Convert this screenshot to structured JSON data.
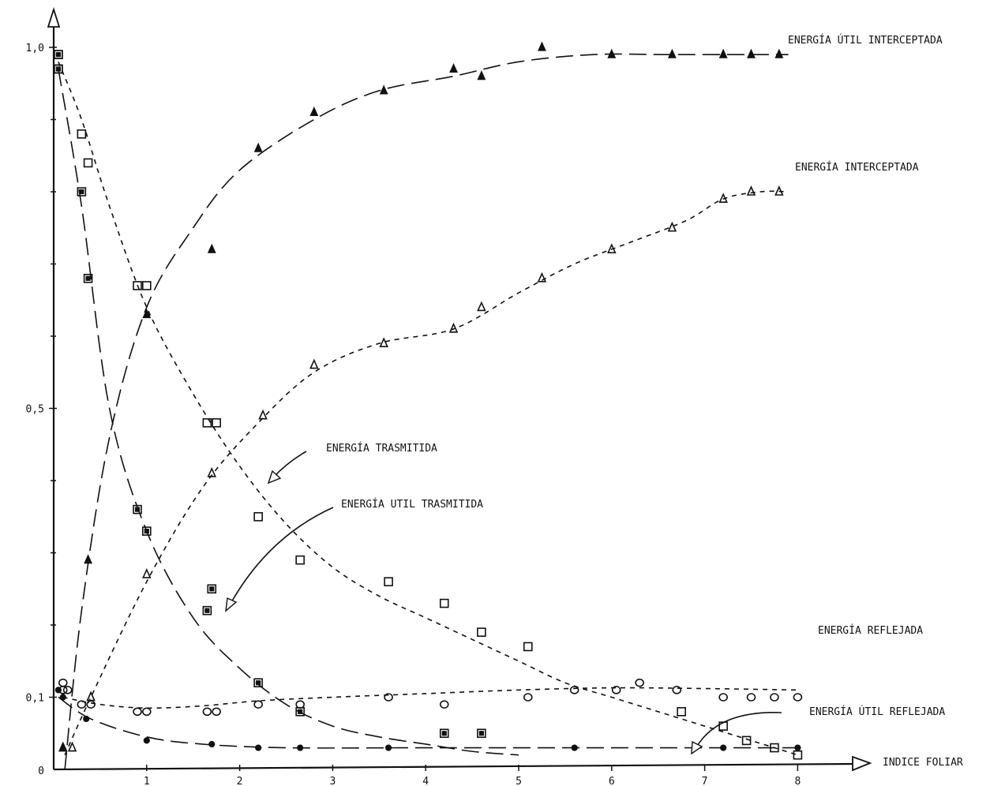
{
  "chart_data": {
    "type": "scatter",
    "xlabel": "INDICE FOLIAR",
    "ylabel": "",
    "xlim": [
      0,
      8
    ],
    "ylim": [
      0,
      1
    ],
    "grid": false,
    "x_ticks": [
      "1",
      "2",
      "3",
      "4",
      "5",
      "6",
      "7",
      "8"
    ],
    "y_ticks": [
      {
        "value": 0,
        "label": "0"
      },
      {
        "value": 0.1,
        "label": "0,1"
      },
      {
        "value": 0.5,
        "label": "0,5"
      },
      {
        "value": 1.0,
        "label": "1,0"
      }
    ],
    "series": [
      {
        "name": "ENERGÍA ÚTIL INTERCEPTADA",
        "marker": "triangle-filled",
        "dash": "long",
        "points": [
          [
            0.1,
            0.03
          ],
          [
            0.37,
            0.29
          ],
          [
            1.0,
            0.63
          ],
          [
            1.7,
            0.72
          ],
          [
            2.2,
            0.86
          ],
          [
            2.8,
            0.91
          ],
          [
            3.55,
            0.94
          ],
          [
            4.3,
            0.97
          ],
          [
            4.6,
            0.96
          ],
          [
            5.25,
            1.0
          ],
          [
            6.0,
            0.99
          ],
          [
            6.65,
            0.99
          ],
          [
            7.2,
            0.99
          ],
          [
            7.5,
            0.99
          ],
          [
            7.8,
            0.99
          ]
        ],
        "curve": [
          [
            0.12,
            0.0
          ],
          [
            0.3,
            0.22
          ],
          [
            0.6,
            0.46
          ],
          [
            1.0,
            0.64
          ],
          [
            1.5,
            0.75
          ],
          [
            2.0,
            0.83
          ],
          [
            2.8,
            0.9
          ],
          [
            3.5,
            0.94
          ],
          [
            4.3,
            0.96
          ],
          [
            5.0,
            0.98
          ],
          [
            5.8,
            0.99
          ],
          [
            6.6,
            0.99
          ],
          [
            7.5,
            0.99
          ],
          [
            7.9,
            0.99
          ]
        ],
        "label": "ENERGÍA ÚTIL INTERCEPTADA"
      },
      {
        "name": "ENERGÍA INTERCEPTADA",
        "marker": "triangle",
        "dash": "short",
        "points": [
          [
            0.1,
            0.03
          ],
          [
            0.2,
            0.03
          ],
          [
            0.4,
            0.1
          ],
          [
            1.0,
            0.27
          ],
          [
            1.7,
            0.41
          ],
          [
            2.25,
            0.49
          ],
          [
            2.8,
            0.56
          ],
          [
            3.55,
            0.59
          ],
          [
            4.3,
            0.61
          ],
          [
            4.6,
            0.64
          ],
          [
            5.25,
            0.68
          ],
          [
            6.0,
            0.72
          ],
          [
            6.65,
            0.75
          ],
          [
            7.2,
            0.79
          ],
          [
            7.5,
            0.8
          ],
          [
            7.8,
            0.8
          ]
        ],
        "curve": [
          [
            0.12,
            0.02
          ],
          [
            0.4,
            0.1
          ],
          [
            1.0,
            0.26
          ],
          [
            1.6,
            0.39
          ],
          [
            2.2,
            0.48
          ],
          [
            2.8,
            0.55
          ],
          [
            3.5,
            0.59
          ],
          [
            4.3,
            0.61
          ],
          [
            5.0,
            0.66
          ],
          [
            5.6,
            0.7
          ],
          [
            6.2,
            0.73
          ],
          [
            6.8,
            0.76
          ],
          [
            7.2,
            0.79
          ],
          [
            7.6,
            0.8
          ],
          [
            7.9,
            0.8
          ]
        ],
        "label": "ENERGÍA INTERCEPTADA"
      },
      {
        "name": "ENERGÍA TRASMITIDA",
        "marker": "square",
        "dash": "short",
        "points": [
          [
            0.05,
            0.99
          ],
          [
            0.05,
            0.97
          ],
          [
            0.3,
            0.88
          ],
          [
            0.37,
            0.84
          ],
          [
            0.9,
            0.67
          ],
          [
            1.0,
            0.67
          ],
          [
            1.65,
            0.48
          ],
          [
            1.75,
            0.48
          ],
          [
            2.2,
            0.35
          ],
          [
            2.65,
            0.29
          ],
          [
            3.6,
            0.26
          ],
          [
            4.2,
            0.23
          ],
          [
            4.6,
            0.19
          ],
          [
            5.1,
            0.17
          ],
          [
            6.75,
            0.08
          ],
          [
            7.2,
            0.06
          ],
          [
            7.45,
            0.04
          ],
          [
            7.75,
            0.03
          ],
          [
            8.0,
            0.02
          ]
        ],
        "curve": [
          [
            0.05,
            0.98
          ],
          [
            0.3,
            0.9
          ],
          [
            0.6,
            0.78
          ],
          [
            1.0,
            0.64
          ],
          [
            1.5,
            0.52
          ],
          [
            2.0,
            0.42
          ],
          [
            2.5,
            0.34
          ],
          [
            3.0,
            0.28
          ],
          [
            3.5,
            0.24
          ],
          [
            4.0,
            0.21
          ],
          [
            4.5,
            0.18
          ],
          [
            5.0,
            0.15
          ],
          [
            5.5,
            0.12
          ],
          [
            6.0,
            0.1
          ],
          [
            6.5,
            0.08
          ],
          [
            7.0,
            0.06
          ],
          [
            7.5,
            0.04
          ],
          [
            8.0,
            0.02
          ]
        ],
        "label": "ENERGÍA TRASMITIDA"
      },
      {
        "name": "ENERGÍA ÚTIL TRASMITIDA",
        "marker": "square-filled",
        "dash": "long",
        "points": [
          [
            0.05,
            0.99
          ],
          [
            0.05,
            0.97
          ],
          [
            0.3,
            0.8
          ],
          [
            0.37,
            0.68
          ],
          [
            0.9,
            0.36
          ],
          [
            1.0,
            0.33
          ],
          [
            1.65,
            0.22
          ],
          [
            1.7,
            0.25
          ],
          [
            2.2,
            0.12
          ],
          [
            2.65,
            0.08
          ],
          [
            4.2,
            0.05
          ],
          [
            4.6,
            0.05
          ]
        ],
        "curve": [
          [
            0.05,
            0.97
          ],
          [
            0.3,
            0.78
          ],
          [
            0.6,
            0.5
          ],
          [
            1.0,
            0.33
          ],
          [
            1.5,
            0.21
          ],
          [
            2.0,
            0.14
          ],
          [
            2.5,
            0.09
          ],
          [
            3.0,
            0.06
          ],
          [
            3.5,
            0.045
          ],
          [
            4.0,
            0.035
          ],
          [
            4.5,
            0.025
          ],
          [
            5.0,
            0.02
          ]
        ],
        "label": "ENERGÍA ÚTIL TRASMITIDA"
      },
      {
        "name": "ENERGÍA REFLEJADA",
        "marker": "circle",
        "dash": "short",
        "points": [
          [
            0.1,
            0.11
          ],
          [
            0.1,
            0.12
          ],
          [
            0.15,
            0.11
          ],
          [
            0.3,
            0.09
          ],
          [
            0.4,
            0.09
          ],
          [
            0.9,
            0.08
          ],
          [
            1.0,
            0.08
          ],
          [
            1.65,
            0.08
          ],
          [
            1.75,
            0.08
          ],
          [
            2.2,
            0.09
          ],
          [
            2.65,
            0.09
          ],
          [
            3.6,
            0.1
          ],
          [
            4.2,
            0.09
          ],
          [
            5.1,
            0.1
          ],
          [
            5.6,
            0.11
          ],
          [
            6.05,
            0.11
          ],
          [
            6.3,
            0.12
          ],
          [
            6.7,
            0.11
          ],
          [
            7.2,
            0.1
          ],
          [
            7.5,
            0.1
          ],
          [
            7.75,
            0.1
          ],
          [
            8.0,
            0.1
          ]
        ],
        "curve": [
          [
            0.1,
            0.1
          ],
          [
            0.5,
            0.09
          ],
          [
            1.0,
            0.085
          ],
          [
            1.6,
            0.088
          ],
          [
            2.2,
            0.095
          ],
          [
            3.0,
            0.1
          ],
          [
            4.0,
            0.105
          ],
          [
            5.0,
            0.11
          ],
          [
            6.0,
            0.113
          ],
          [
            7.0,
            0.112
          ],
          [
            8.0,
            0.11
          ]
        ],
        "label": "ENERGÍA REFLEJADA"
      },
      {
        "name": "ENERGÍA ÚTIL REFLEJADA",
        "marker": "circle-filled",
        "dash": "long",
        "points": [
          [
            0.05,
            0.11
          ],
          [
            0.1,
            0.1
          ],
          [
            0.35,
            0.07
          ],
          [
            1.0,
            0.04
          ],
          [
            1.7,
            0.035
          ],
          [
            2.2,
            0.03
          ],
          [
            2.65,
            0.03
          ],
          [
            3.6,
            0.03
          ],
          [
            5.6,
            0.03
          ],
          [
            7.2,
            0.03
          ],
          [
            8.0,
            0.03
          ]
        ],
        "curve": [
          [
            0.05,
            0.1
          ],
          [
            0.4,
            0.07
          ],
          [
            1.0,
            0.045
          ],
          [
            1.6,
            0.035
          ],
          [
            2.5,
            0.03
          ],
          [
            4.0,
            0.03
          ],
          [
            6.0,
            0.03
          ],
          [
            8.0,
            0.03
          ]
        ],
        "label": "ENERGÍA ÚTIL REFLEJADA"
      }
    ],
    "annotations": {
      "energia_util_interceptada": "ENERGÍA ÚTIL INTERCEPTADA",
      "energia_interceptada": "ENERGÍA INTERCEPTADA",
      "energia_trasmitida": "ENERGÍA TRASMITIDA",
      "energia_util_trasmitida": "ENERGÍA UTIL TRASMITIDA",
      "energia_reflejada": "ENERGÍA REFLEJADA",
      "energia_util_reflejada": "ENERGÍA ÚTIL REFLEJADA"
    }
  }
}
